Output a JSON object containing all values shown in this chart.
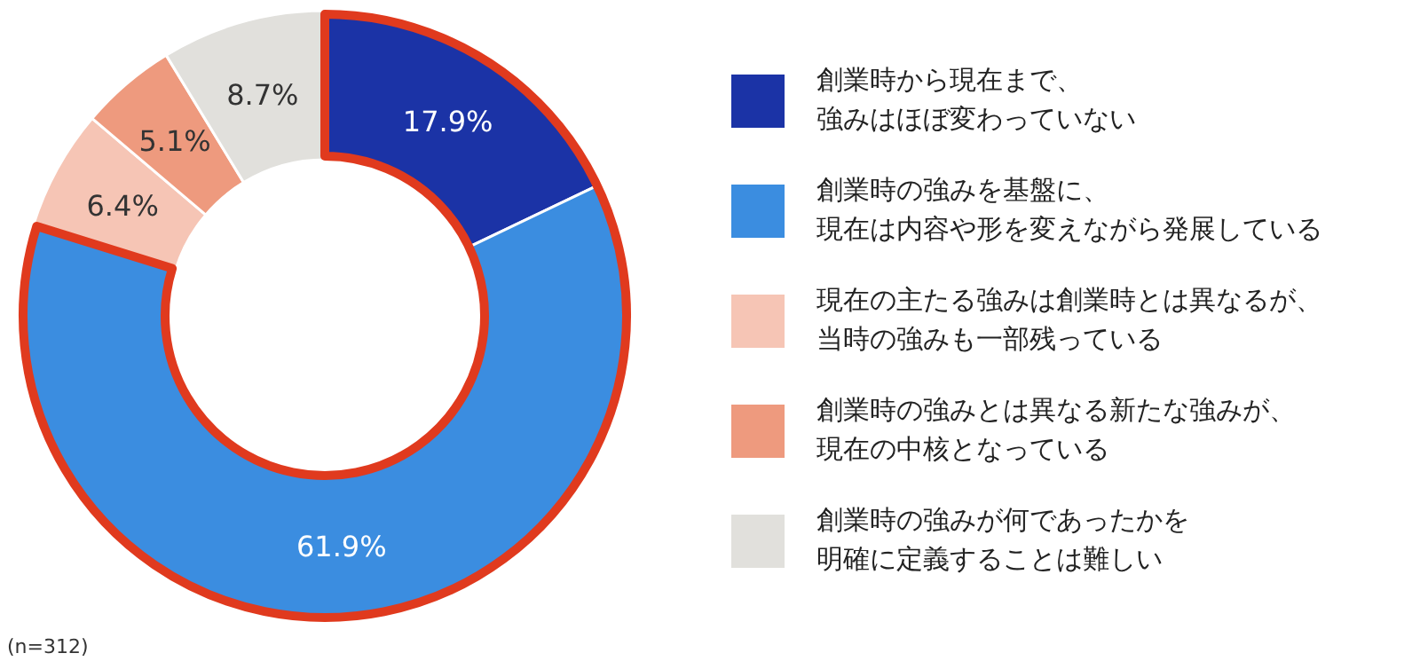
{
  "chart_data": {
    "type": "donut",
    "categories": [
      "創業時から現在まで、強みはほぼ変わっていない",
      "創業時の強みを基盤に、現在は内容や形を変えながら発展している",
      "現在の主たる強みは創業時とは異なるが、当時の強みも一部残っている",
      "創業時の強みとは異なる新たな強みが、現在の中核となっている",
      "創業時の強みが何であったかを明確に定義することは難しい"
    ],
    "values": [
      17.9,
      61.9,
      6.4,
      5.1,
      8.7
    ],
    "colors": [
      "#1b33a6",
      "#3b8de0",
      "#f6c5b5",
      "#ee9a7e",
      "#e1e0dc"
    ],
    "value_labels": [
      "17.9%",
      "61.9%",
      "6.4%",
      "5.1%",
      "8.7%"
    ],
    "legend": "right",
    "annotations": [
      "(n=312)"
    ]
  }
}
